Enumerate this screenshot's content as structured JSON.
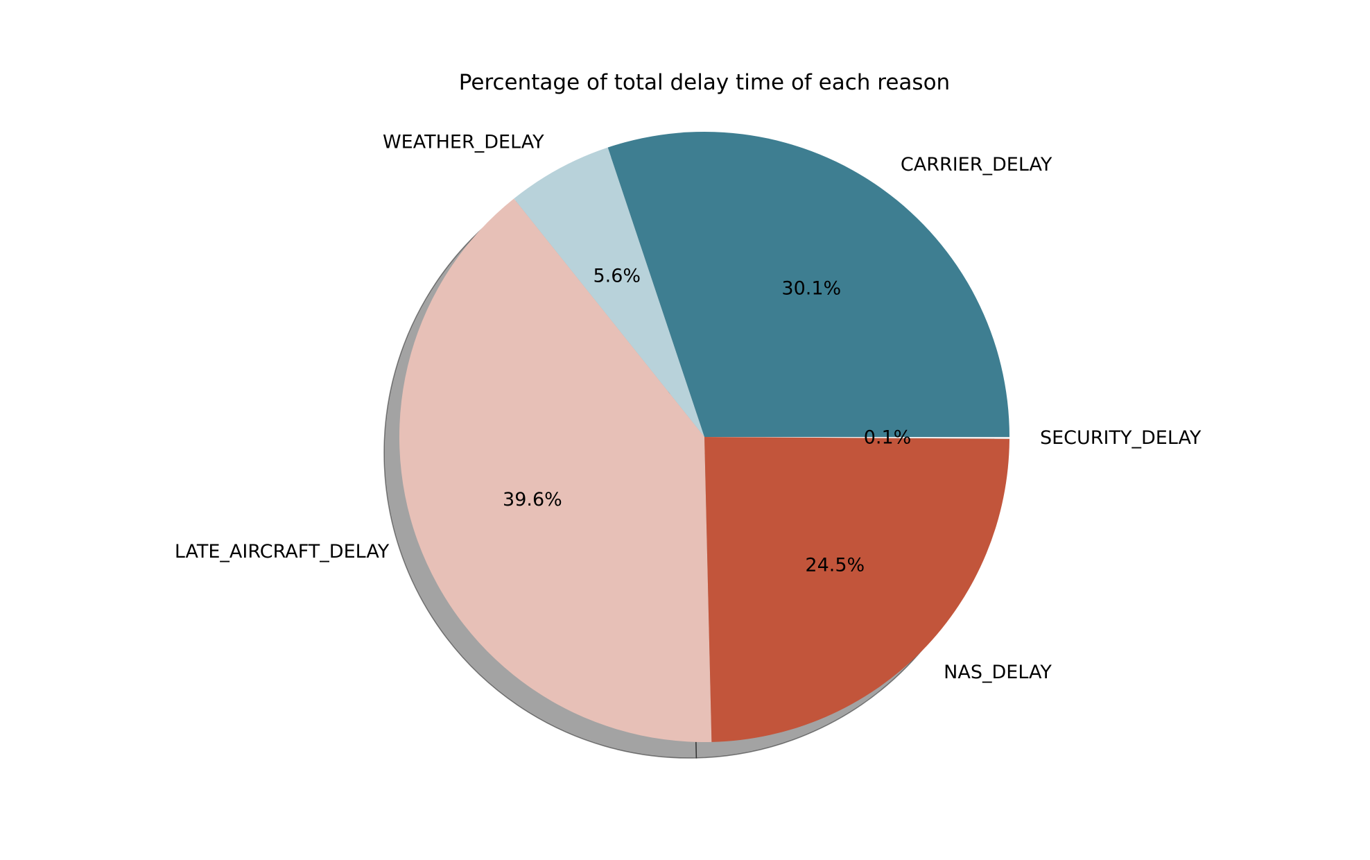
{
  "chart_data": {
    "type": "pie",
    "title": "Percentage of total delay time of each reason",
    "start_angle_deg": 0,
    "direction": "counterclockwise",
    "shadow": true,
    "slices": [
      {
        "label": "CARRIER_DELAY",
        "value": 30.1,
        "pct_text": "30.1%",
        "color": "#3E7E91"
      },
      {
        "label": "WEATHER_DELAY",
        "value": 5.6,
        "pct_text": "5.6%",
        "color": "#B8D2DA"
      },
      {
        "label": "LATE_AIRCRAFT_DELAY",
        "value": 39.6,
        "pct_text": "39.6%",
        "color": "#E7C0B7"
      },
      {
        "label": "NAS_DELAY",
        "value": 24.5,
        "pct_text": "24.5%",
        "color": "#C2553B"
      },
      {
        "label": "SECURITY_DELAY",
        "value": 0.1,
        "pct_text": "0.1%",
        "color": "#EDEDED"
      }
    ]
  }
}
